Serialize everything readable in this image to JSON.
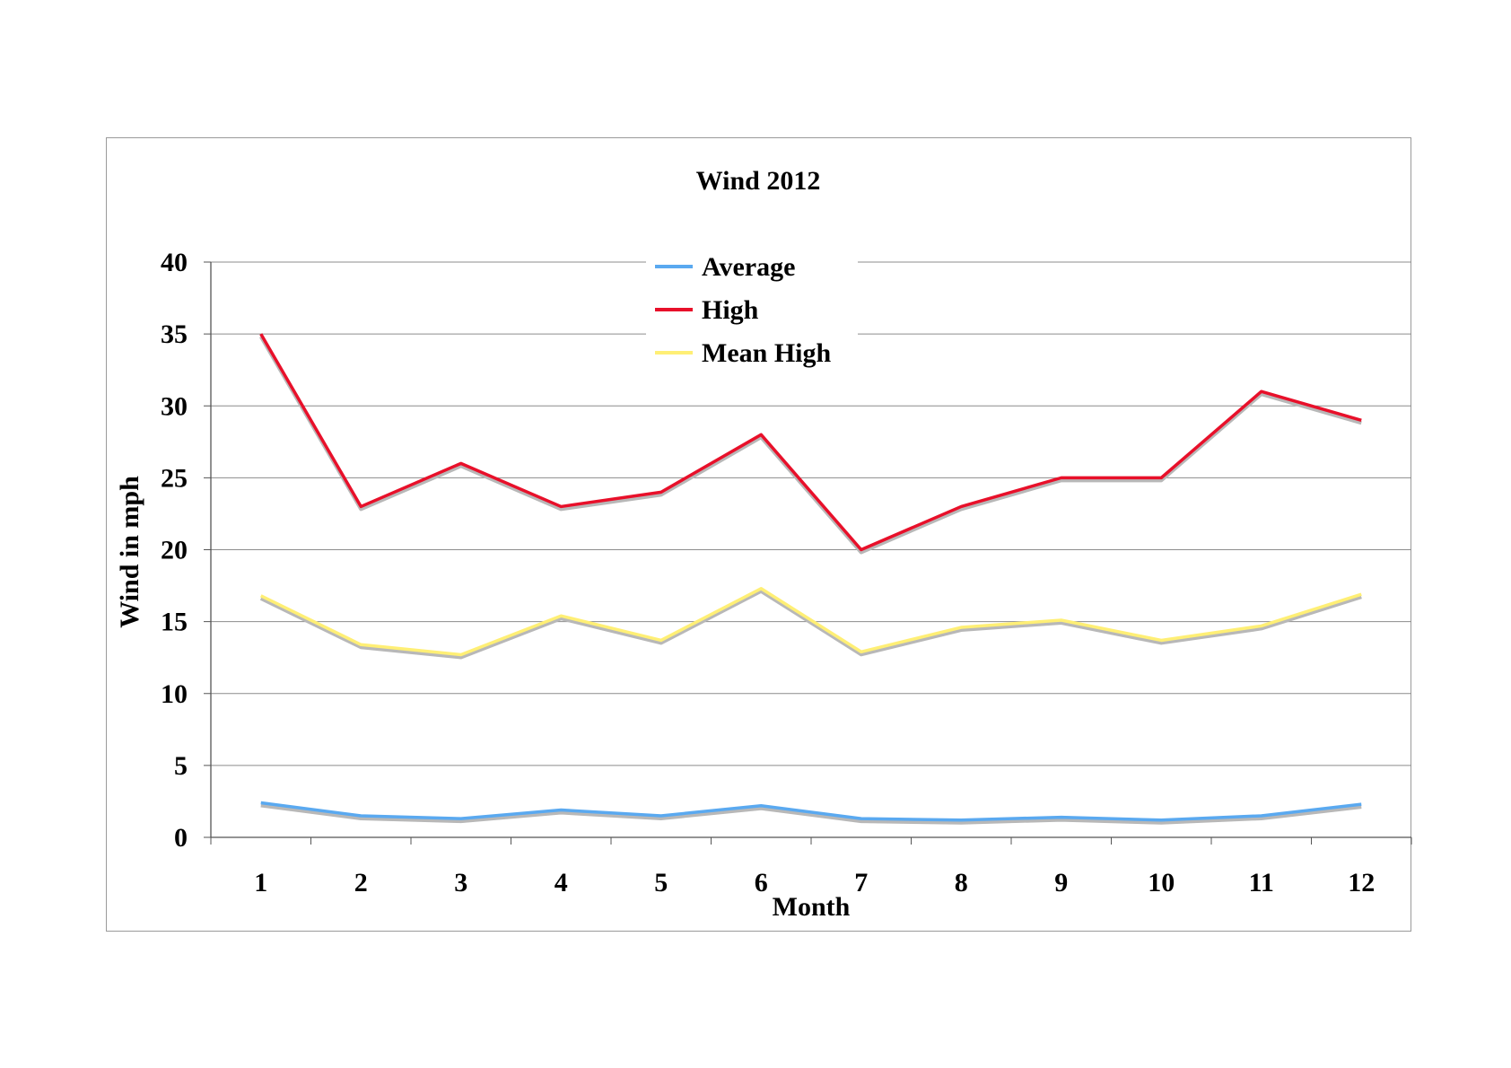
{
  "chart_data": {
    "type": "line",
    "title": "Wind 2012",
    "xlabel": "Month",
    "ylabel": "Wind in mph",
    "categories": [
      "1",
      "2",
      "3",
      "4",
      "5",
      "6",
      "7",
      "8",
      "9",
      "10",
      "11",
      "12"
    ],
    "ylim": [
      0,
      40
    ],
    "yticks": [
      "0",
      "5",
      "10",
      "15",
      "20",
      "25",
      "30",
      "35",
      "40"
    ],
    "grid": true,
    "legend_position": "top-center",
    "series": [
      {
        "name": "Average",
        "color": "#5aa9f0",
        "values": [
          2.4,
          1.5,
          1.3,
          1.9,
          1.5,
          2.2,
          1.3,
          1.2,
          1.4,
          1.2,
          1.5,
          2.3
        ]
      },
      {
        "name": "High",
        "color": "#e8102a",
        "values": [
          35,
          23,
          26,
          23,
          24,
          28,
          20,
          23,
          25,
          25,
          31,
          29
        ]
      },
      {
        "name": "Mean High",
        "color": "#ffef75",
        "values": [
          16.8,
          13.4,
          12.7,
          15.4,
          13.7,
          17.3,
          12.9,
          14.6,
          15.1,
          13.7,
          14.7,
          16.9
        ]
      }
    ]
  }
}
